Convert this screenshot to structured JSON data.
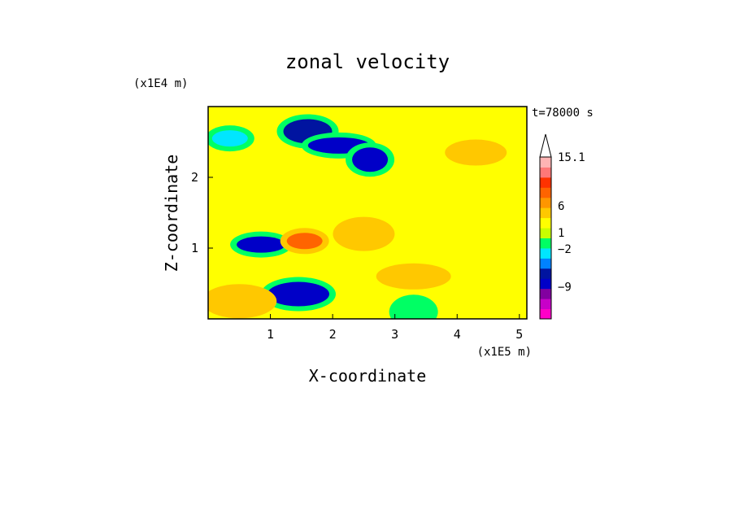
{
  "chart_data": {
    "type": "heatmap",
    "title": "zonal velocity",
    "xlabel": "X-coordinate",
    "ylabel": "Z-coordinate",
    "x_unit": "(x1E5 m)",
    "y_unit": "(x1E4 m)",
    "time_label": "t=78000 s",
    "xlim": [
      0,
      5.12
    ],
    "ylim": [
      0,
      3.0
    ],
    "x_ticks": [
      1,
      2,
      3,
      4,
      5
    ],
    "y_ticks": [
      1,
      2
    ],
    "colorbar": {
      "labels": [
        {
          "value": 15.1,
          "text": "15.1"
        },
        {
          "value": 6,
          "text": "6"
        },
        {
          "value": 1,
          "text": "1"
        },
        {
          "value": -2,
          "text": "−2"
        },
        {
          "value": -9,
          "text": "−9"
        }
      ],
      "colors": [
        "#ff00c8",
        "#c800c8",
        "#8200a0",
        "#0000c8",
        "#0014a0",
        "#0082ff",
        "#00e6ff",
        "#00ff64",
        "#c8ff00",
        "#ffff00",
        "#ffc800",
        "#ff9600",
        "#ff6400",
        "#ff3200",
        "#ff7878",
        "#ffb4b4"
      ],
      "extend_max": true
    },
    "features": [
      {
        "x": 0.35,
        "z": 2.55,
        "value": -2
      },
      {
        "x": 1.6,
        "z": 2.65,
        "value": -5
      },
      {
        "x": 2.1,
        "z": 2.45,
        "value": -6
      },
      {
        "x": 2.6,
        "z": 2.25,
        "value": -6
      },
      {
        "x": 0.85,
        "z": 1.05,
        "value": -7
      },
      {
        "x": 1.45,
        "z": 0.35,
        "value": -7
      },
      {
        "x": 1.55,
        "z": 1.1,
        "value": 6
      },
      {
        "x": 2.5,
        "z": 1.2,
        "value": 3
      },
      {
        "x": 3.3,
        "z": 0.6,
        "value": 2
      },
      {
        "x": 3.3,
        "z": 0.1,
        "value": -1
      },
      {
        "x": 4.3,
        "z": 2.35,
        "value": 3
      },
      {
        "x": 0.5,
        "z": 0.25,
        "value": 3
      }
    ]
  }
}
